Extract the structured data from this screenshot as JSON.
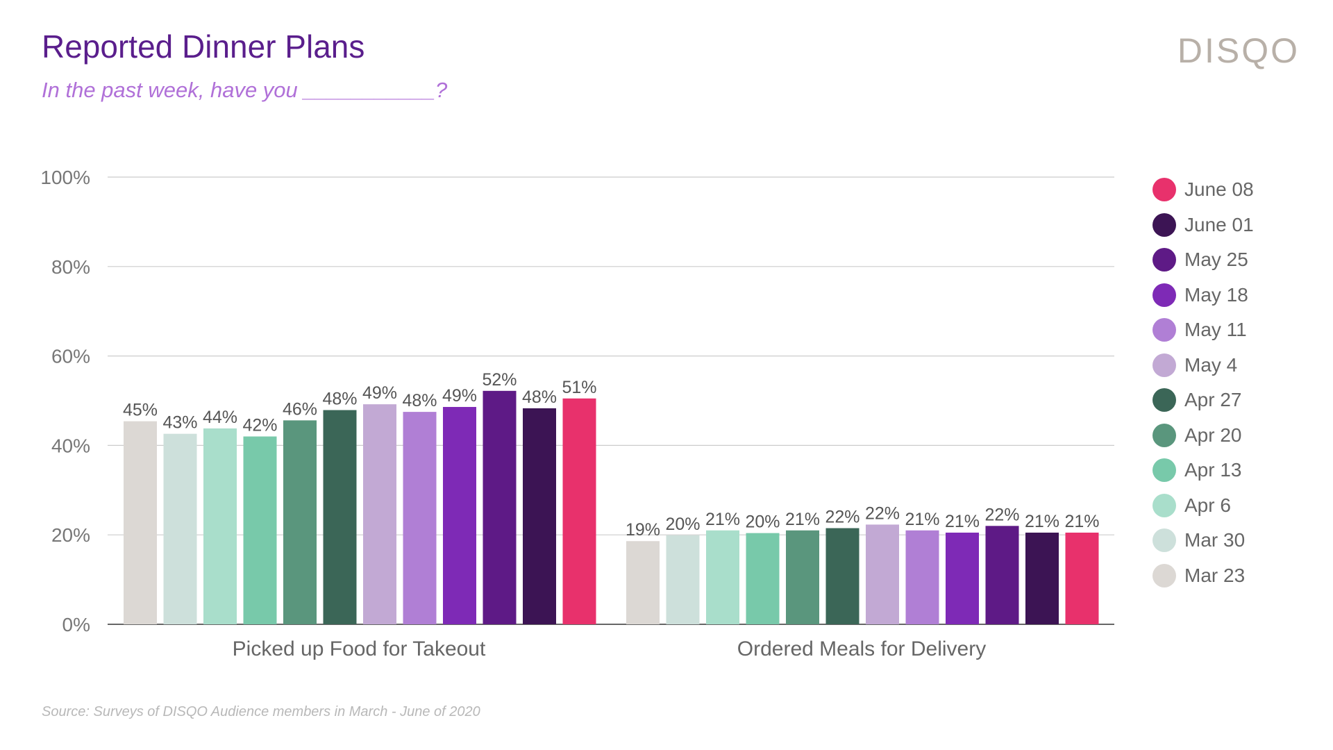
{
  "header": {
    "title": "Reported Dinner Plans",
    "subtitle": "In the past week, have you ___________?",
    "brand": "DISQO"
  },
  "footer": {
    "source": "Source: Surveys of DISQO Audience members in March - June of 2020"
  },
  "chart_data": {
    "type": "bar",
    "title": "Reported Dinner Plans",
    "subtitle": "In the past week, have you ___________?",
    "xlabel": "",
    "ylabel": "",
    "ylim": [
      0,
      100
    ],
    "yticks": [
      0,
      20,
      40,
      60,
      80,
      100
    ],
    "ytick_labels": [
      "0%",
      "20%",
      "40%",
      "60%",
      "80%",
      "100%"
    ],
    "grid": true,
    "legend_position": "right",
    "categories": [
      "Picked up Food for Takeout",
      "Ordered Meals for Delivery"
    ],
    "series": [
      {
        "name": "Mar 23",
        "color": "#dcd8d4",
        "values": [
          45.4,
          18.6
        ],
        "labels": [
          "45%",
          "19%"
        ]
      },
      {
        "name": "Mar 30",
        "color": "#cde0db",
        "values": [
          42.6,
          19.9
        ],
        "labels": [
          "43%",
          "20%"
        ]
      },
      {
        "name": "Apr 6",
        "color": "#a9decb",
        "values": [
          43.8,
          21.0
        ],
        "labels": [
          "44%",
          "21%"
        ]
      },
      {
        "name": "Apr 13",
        "color": "#78c9aa",
        "values": [
          42.0,
          20.4
        ],
        "labels": [
          "42%",
          "20%"
        ]
      },
      {
        "name": "Apr 20",
        "color": "#5a967d",
        "values": [
          45.6,
          21.0
        ],
        "labels": [
          "46%",
          "21%"
        ]
      },
      {
        "name": "Apr 27",
        "color": "#3b6657",
        "values": [
          47.9,
          21.5
        ],
        "labels": [
          "48%",
          "22%"
        ]
      },
      {
        "name": "May 4",
        "color": "#c2a9d4",
        "values": [
          49.2,
          22.3
        ],
        "labels": [
          "49%",
          "22%"
        ]
      },
      {
        "name": "May 11",
        "color": "#b07fd5",
        "values": [
          47.5,
          21.0
        ],
        "labels": [
          "48%",
          "21%"
        ]
      },
      {
        "name": "May 18",
        "color": "#7e2ab6",
        "values": [
          48.6,
          20.5
        ],
        "labels": [
          "49%",
          "21%"
        ]
      },
      {
        "name": "May 25",
        "color": "#5e1a86",
        "values": [
          52.2,
          22.0
        ],
        "labels": [
          "52%",
          "22%"
        ]
      },
      {
        "name": "June 01",
        "color": "#3c1454",
        "values": [
          48.3,
          20.5
        ],
        "labels": [
          "48%",
          "21%"
        ]
      },
      {
        "name": "June 08",
        "color": "#e8316c",
        "values": [
          50.5,
          20.5
        ],
        "labels": [
          "51%",
          "21%"
        ]
      }
    ]
  }
}
